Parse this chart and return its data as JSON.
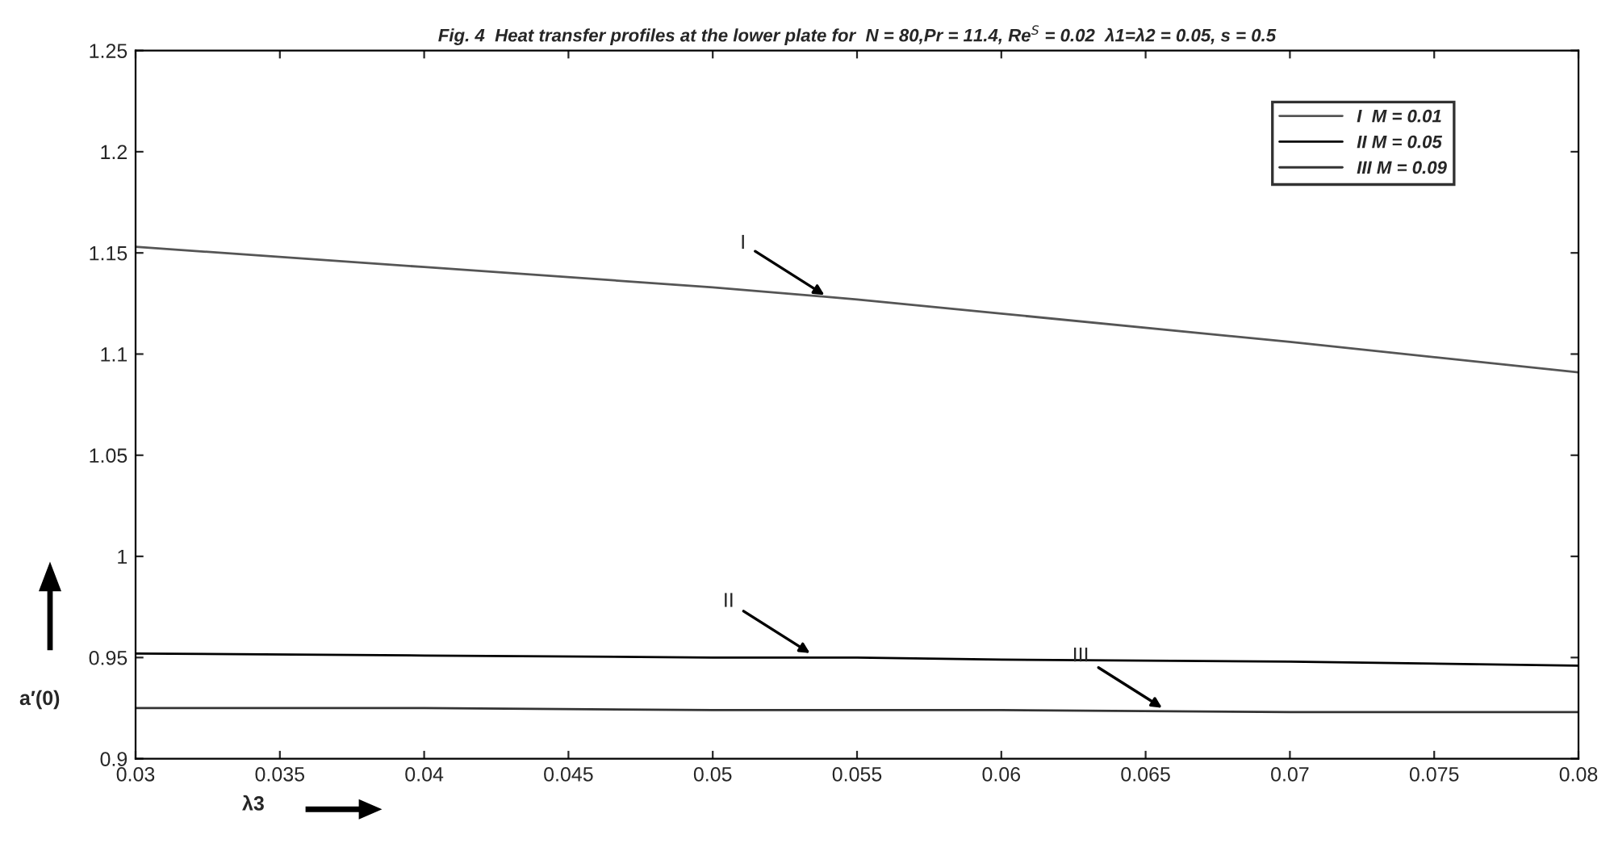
{
  "chart_data": {
    "type": "line",
    "title": "Fig. 4  Heat transfer profiles at the lower plate for  N = 80,Pr = 11.4, Re$^{S}$ = 0.02  λ1=λ2 = 0.05, s = 0.5",
    "xlabel": "λ3",
    "ylabel": "a′(0)",
    "x": [
      0.03,
      0.04,
      0.05,
      0.055,
      0.06,
      0.07,
      0.08
    ],
    "series": [
      {
        "name": "I  M = 0.01",
        "color": "#555555",
        "values": [
          1.153,
          1.143,
          1.133,
          1.127,
          1.12,
          1.106,
          1.091
        ]
      },
      {
        "name": "II M = 0.05",
        "color": "#000000",
        "values": [
          0.952,
          0.951,
          0.95,
          0.95,
          0.949,
          0.948,
          0.946
        ]
      },
      {
        "name": "III M = 0.09",
        "color": "#333333",
        "values": [
          0.925,
          0.925,
          0.924,
          0.924,
          0.924,
          0.923,
          0.923
        ]
      }
    ],
    "annotations": [
      {
        "text": "I",
        "x": 0.054,
        "y": 1.128
      },
      {
        "text": "II",
        "x": 0.0535,
        "y": 0.951
      },
      {
        "text": "III",
        "x": 0.0657,
        "y": 0.924
      }
    ],
    "xlim": [
      0.03,
      0.08
    ],
    "xticks": [
      0.03,
      0.035,
      0.04,
      0.045,
      0.05,
      0.055,
      0.06,
      0.065,
      0.07,
      0.075,
      0.08
    ],
    "ylim": [
      0.9,
      1.25
    ],
    "yticks": [
      0.9,
      0.95,
      1,
      1.05,
      1.1,
      1.15,
      1.2,
      1.25
    ],
    "grid": false,
    "legend": "top right",
    "marker": "none",
    "line_style": "solid"
  }
}
